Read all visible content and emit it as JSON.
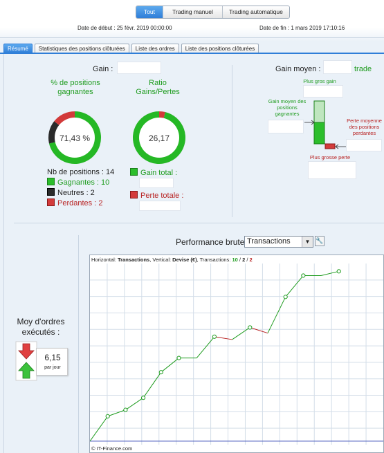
{
  "mode_tabs": [
    "Tout",
    "Trading manuel",
    "Trading automatique"
  ],
  "dates": {
    "start": "Date de début : 25 févr. 2019 00:00:00",
    "end": "Date de fin : 1 mars 2019 17:10:16"
  },
  "sub_tabs": [
    "Résumé",
    "Statistiques des positions clôturées",
    "Liste des ordres",
    "Liste des positions clôturées"
  ],
  "summary": {
    "gain_label": "Gain :",
    "pct_title": "% de positions gagnantes",
    "pct_value": "71,43 %",
    "ratio_title": "Ratio Gains/Pertes",
    "ratio_value": "26,17",
    "nb_positions": "Nb de positions : 14",
    "gagnantes": "Gagnantes : 10",
    "neutres": "Neutres : 2",
    "perdantes": "Perdantes : 2",
    "gain_total": "Gain total :",
    "perte_totale": "Perte totale :"
  },
  "donut_pct": {
    "win": 10,
    "neutral": 2,
    "loss": 2
  },
  "donut_ratio": {
    "gain": 26.17,
    "loss": 1
  },
  "gain_moyen": {
    "label": "Gain moyen :",
    "unit": "trade",
    "plus_gros_gain": "Plus gros gain",
    "gain_moyen_positions": "Gain moyen des positions gagnantes",
    "perte_moyenne": "Perte moyenne des positions perdantes",
    "plus_grosse_perte": "Plus grosse perte"
  },
  "orders": {
    "label": "Moy d'ordres exécutés :",
    "value": "6,15",
    "unit": "par jour"
  },
  "performance": {
    "label": "Performance brute",
    "selected": "Transactions"
  },
  "chart_header": {
    "prefix": "Horizontal: ",
    "h": "Transactions",
    "mid": ", Vertical: ",
    "v": "Devise (€)",
    "tx": ", Transactions: ",
    "n1": "10",
    "sep1": " / ",
    "n2": "2",
    "sep2": " / ",
    "n3": "2"
  },
  "chart_footer": "© IT-Finance.com",
  "chart_data": {
    "type": "line",
    "title": "",
    "xlabel": "Transactions",
    "ylabel": "Devise (€)",
    "x": [
      0,
      1,
      2,
      3,
      4,
      5,
      6,
      7,
      8,
      9,
      10,
      11,
      12,
      13,
      14
    ],
    "y": [
      0,
      3.5,
      4.4,
      6.1,
      9.7,
      11.7,
      11.7,
      14.7,
      14.3,
      16,
      15.2,
      20.3,
      23.3,
      23.3,
      23.9
    ],
    "outcomes": [
      "",
      "win",
      "win",
      "win",
      "win",
      "win",
      "neutral",
      "win",
      "loss",
      "win",
      "loss",
      "win",
      "win",
      "neutral",
      "win"
    ],
    "colors": {
      "win": "#1f9c1f",
      "loss": "#b82222",
      "baseline": "#3b4fb8"
    },
    "xlim": [
      0,
      16.5
    ],
    "ylim": [
      -0.5,
      25
    ],
    "grid": true
  }
}
